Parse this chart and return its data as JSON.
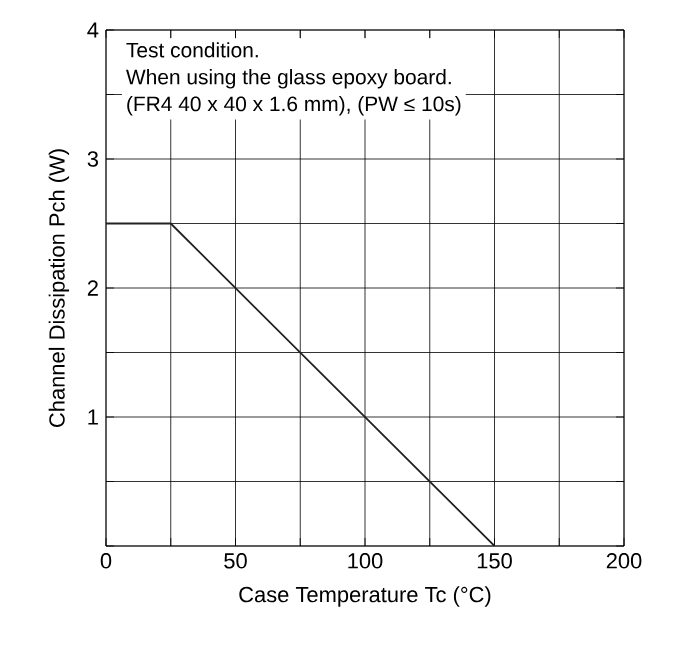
{
  "chart_data": {
    "type": "line",
    "xlabel": "Case Temperature   Tc  (°C)",
    "ylabel": "Channel Dissipation   Pch  (W)",
    "x": [
      0,
      25,
      150
    ],
    "series": [
      {
        "color": "#222222",
        "values": [
          2.5,
          2.5,
          0
        ]
      }
    ],
    "xlim": [
      0,
      200
    ],
    "ylim": [
      0,
      4
    ],
    "xticks": [
      0,
      {
        "value": 25,
        "label": null
      },
      50,
      {
        "value": 75,
        "label": null
      },
      100,
      {
        "value": 125,
        "label": null
      },
      150,
      {
        "value": 175,
        "label": null
      },
      200
    ],
    "yticks": [
      {
        "value": 0,
        "label": null
      },
      {
        "value": 0.5,
        "label": null
      },
      1,
      {
        "value": 1.5,
        "label": null
      },
      2,
      {
        "value": 2.5,
        "label": null
      },
      3,
      {
        "value": 3.5,
        "label": null
      },
      4
    ],
    "grid": true,
    "marker": "none",
    "line_style": "solid",
    "annotations": [
      "Test condition.",
      "When using the glass epoxy board.",
      "(FR4  40 x 40 x 1.6 mm), (PW ≤ 10s)"
    ]
  }
}
